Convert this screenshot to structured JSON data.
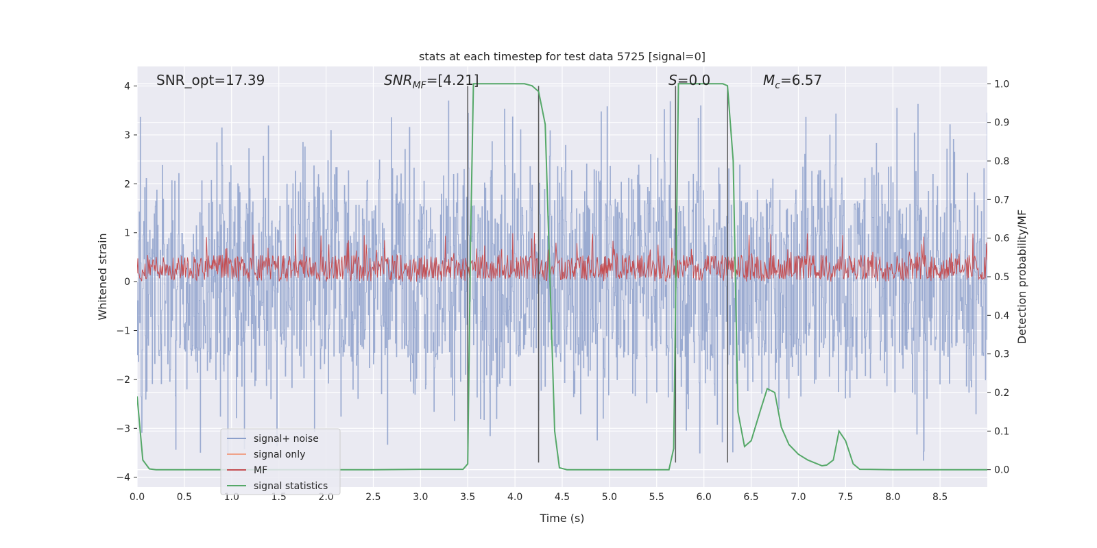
{
  "chart_data": {
    "type": "line",
    "title": "stats at each timestep for test data 5725 [signal=0]",
    "xlabel": "Time (s)",
    "ylabel_left": "Whitened strain",
    "ylabel_right": "Detection probability/MF",
    "xlim": [
      0.0,
      9.0
    ],
    "ylim_left": [
      -4.2,
      4.4
    ],
    "ylim_right": [
      -0.045,
      1.045
    ],
    "x_ticks": [
      0.0,
      0.5,
      1.0,
      1.5,
      2.0,
      2.5,
      3.0,
      3.5,
      4.0,
      4.5,
      5.0,
      5.5,
      6.0,
      6.5,
      7.0,
      7.5,
      8.0,
      8.5
    ],
    "x_tick_labels": [
      "0.0",
      "0.5",
      "1.0",
      "1.5",
      "2.0",
      "2.5",
      "3.0",
      "3.5",
      "4.0",
      "4.5",
      "5.0",
      "5.5",
      "6.0",
      "6.5",
      "7.0",
      "7.5",
      "8.0",
      "8.5"
    ],
    "y_left_ticks": [
      4,
      3,
      2,
      1,
      0,
      -1,
      -2,
      -3,
      -4
    ],
    "y_left_tick_labels": [
      "4",
      "3",
      "2",
      "1",
      "0",
      "−1",
      "−2",
      "−3",
      "−4"
    ],
    "y_right_ticks": [
      1.0,
      0.9,
      0.8,
      0.7,
      0.6,
      0.5,
      0.4,
      0.3,
      0.2,
      0.1,
      0.0
    ],
    "y_right_tick_labels": [
      "1.0",
      "0.9",
      "0.8",
      "0.7",
      "0.6",
      "0.5",
      "0.4",
      "0.3",
      "0.2",
      "0.1",
      "0.0"
    ],
    "annotations": {
      "snr_opt": "SNR_opt=17.39",
      "snr_mf_main": "SNR",
      "snr_mf_sub": "MF",
      "snr_mf_val": "=[4.21]",
      "s_main": "S",
      "s_val": "=0.0",
      "mc_main": "M",
      "mc_sub": "c",
      "mc_val": "=6.57"
    },
    "legend": {
      "position": "lower-left",
      "entries": [
        {
          "label": "signal+ noise",
          "color": "#8da0cb"
        },
        {
          "label": "signal only",
          "color": "#f0a38a"
        },
        {
          "label": "MF",
          "color": "#c44e52"
        },
        {
          "label": "signal statistics",
          "color": "#55a868"
        }
      ]
    },
    "noise_band": {
      "color": "#8da0cb",
      "dense_upper": 1.65,
      "dense_lower": -1.55,
      "max_abs": 3.7
    },
    "mf_band": {
      "color": "#c44e52",
      "lower": 0.0,
      "typical_upper": 0.55,
      "max": 1.0
    },
    "vertical_lines": [
      {
        "x": 3.5,
        "y_from": -3.7,
        "y_to": 4.0
      },
      {
        "x": 4.25,
        "y_from": -3.7,
        "y_to": 4.0
      },
      {
        "x": 5.7,
        "y_from": -3.7,
        "y_to": 4.0
      },
      {
        "x": 6.25,
        "y_from": -3.7,
        "y_to": 4.0
      }
    ],
    "series": [
      {
        "name": "signal statistics",
        "axis": "right",
        "color": "#55a868",
        "x": [
          0.0,
          0.06,
          0.13,
          0.2,
          0.5,
          1.0,
          1.5,
          2.0,
          2.5,
          3.0,
          3.45,
          3.5,
          3.53,
          3.56,
          3.6,
          3.7,
          3.9,
          4.1,
          4.18,
          4.25,
          4.32,
          4.42,
          4.47,
          4.55,
          5.0,
          5.5,
          5.63,
          5.68,
          5.73,
          5.77,
          6.0,
          6.2,
          6.25,
          6.31,
          6.36,
          6.43,
          6.5,
          6.6,
          6.67,
          6.75,
          6.82,
          6.9,
          7.0,
          7.1,
          7.2,
          7.25,
          7.3,
          7.37,
          7.43,
          7.5,
          7.58,
          7.65,
          8.0,
          8.5,
          9.0
        ],
        "y": [
          0.19,
          0.025,
          0.002,
          0.0,
          0.0,
          0.0,
          0.0,
          0.0,
          0.0,
          0.001,
          0.001,
          0.015,
          0.6,
          1.0,
          1.0,
          1.0,
          1.0,
          1.0,
          0.995,
          0.98,
          0.895,
          0.1,
          0.005,
          0.0,
          0.0,
          0.0,
          0.0,
          0.055,
          1.0,
          1.0,
          1.0,
          1.0,
          0.995,
          0.8,
          0.15,
          0.06,
          0.075,
          0.155,
          0.21,
          0.2,
          0.11,
          0.065,
          0.04,
          0.025,
          0.015,
          0.01,
          0.012,
          0.025,
          0.1,
          0.075,
          0.015,
          0.001,
          0.0,
          0.0,
          0.0
        ]
      }
    ]
  }
}
